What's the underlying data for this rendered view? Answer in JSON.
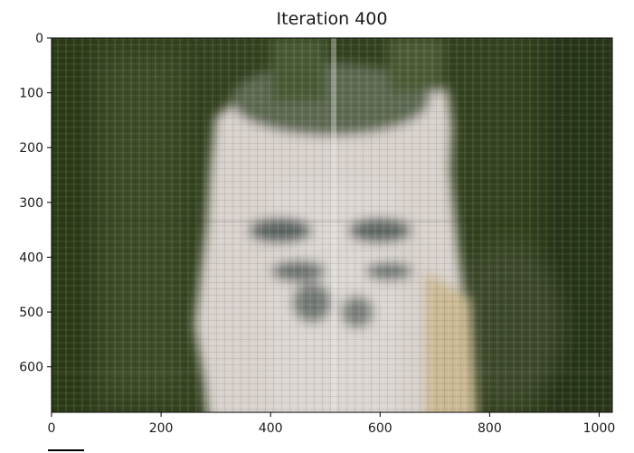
{
  "chart_data": {
    "type": "heatmap",
    "title": "Iteration 400",
    "xlabel": "",
    "ylabel": "",
    "xlim": [
      0,
      1024
    ],
    "ylim": [
      0,
      683
    ],
    "y_inverted": true,
    "x_ticks": [
      0,
      200,
      400,
      600,
      800,
      1000
    ],
    "y_ticks": [
      0,
      100,
      200,
      300,
      400,
      500,
      600
    ],
    "grid": false,
    "image_description_colors": {
      "background": "#2f3e1c",
      "center_figure": "#d9d2cc",
      "dark_patches": "#4f5a54",
      "warm_edge": "#c8b48c"
    }
  }
}
